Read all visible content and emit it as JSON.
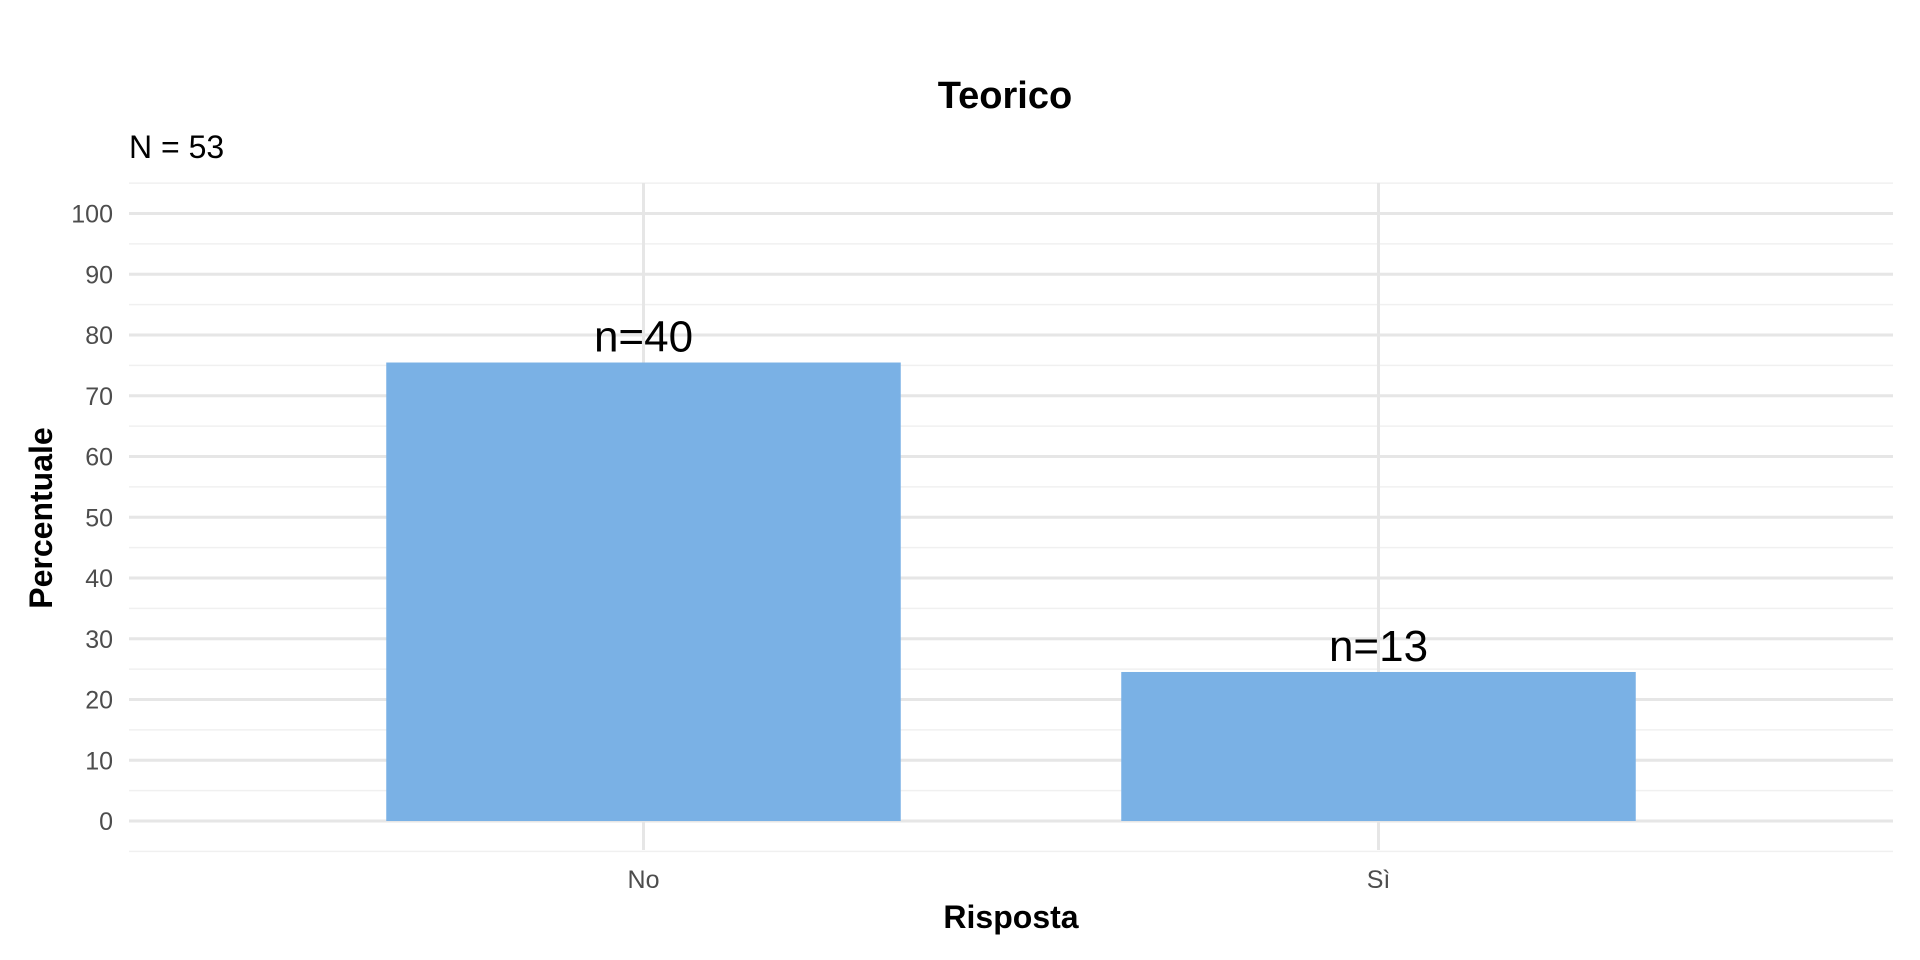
{
  "chart_data": {
    "type": "bar",
    "title": "Teorico",
    "subtitle": "N = 53",
    "xlabel": "Risposta",
    "ylabel": "Percentuale",
    "categories": [
      "No",
      "Sì"
    ],
    "values": [
      75.47,
      24.53
    ],
    "data_labels": [
      "n=40",
      "n=13"
    ],
    "ylim": [
      0,
      100
    ],
    "yticks": [
      0,
      10,
      20,
      30,
      40,
      50,
      60,
      70,
      80,
      90,
      100
    ],
    "bar_color": "#7AB1E5",
    "grid": true,
    "legend": "none"
  }
}
